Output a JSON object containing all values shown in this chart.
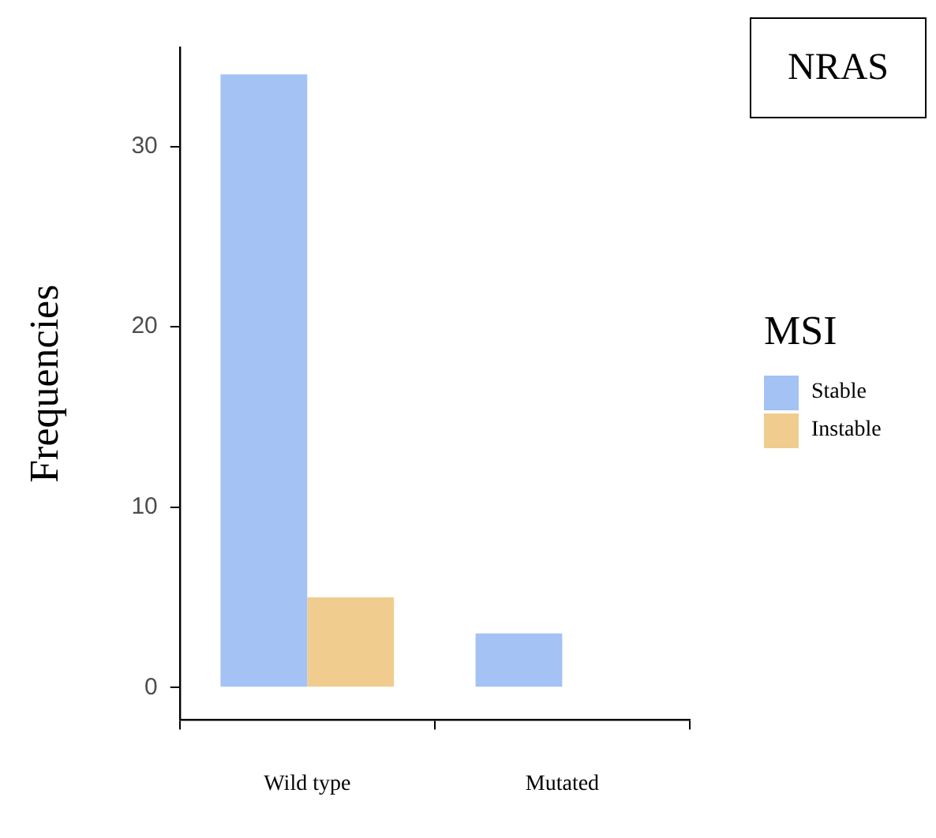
{
  "chart_data": {
    "type": "bar",
    "title": "NRAS",
    "ylabel": "Frequencies",
    "legend_title": "MSI",
    "categories": [
      "Wild type",
      "Mutated"
    ],
    "series": [
      {
        "name": "Stable",
        "color": "#a4c2f4",
        "values": [
          34,
          3
        ]
      },
      {
        "name": "Instable",
        "color": "#f0cd8e",
        "values": [
          5,
          0
        ]
      }
    ],
    "ylim": [
      -1.8,
      35.5
    ],
    "yticks": [
      0,
      10,
      20,
      30
    ],
    "grid": false,
    "legend": "right"
  }
}
